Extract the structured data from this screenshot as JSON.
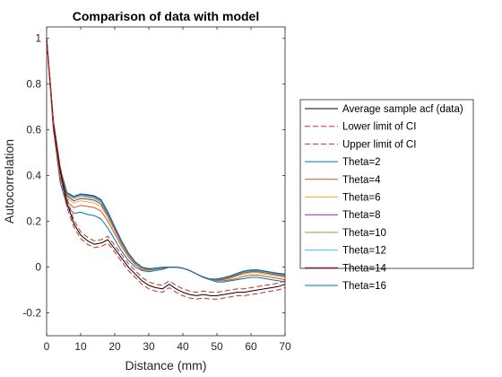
{
  "chart_data": {
    "type": "line",
    "title": "Comparison of data with model",
    "xlabel": "Distance (mm)",
    "ylabel": "Autocorrelation",
    "xlim": [
      0,
      70
    ],
    "ylim": [
      -0.3,
      1.05
    ],
    "xticks": [
      "0",
      "10",
      "20",
      "30",
      "40",
      "50",
      "60",
      "70"
    ],
    "yticks": [
      "-0.2",
      "0",
      "0.2",
      "0.4",
      "0.6",
      "0.8",
      "1"
    ],
    "grid": false,
    "legend_position": "outside-right",
    "x": [
      0,
      2,
      4,
      6,
      8,
      10,
      12,
      14,
      16,
      18,
      20,
      22,
      24,
      26,
      28,
      30,
      32,
      34,
      36,
      38,
      40,
      42,
      44,
      46,
      48,
      50,
      52,
      54,
      56,
      58,
      60,
      62,
      64,
      66,
      68,
      70
    ],
    "series": [
      {
        "name": "Average sample acf (data)",
        "color": "#000000",
        "dash": "solid",
        "values": [
          1.0,
          0.62,
          0.42,
          0.28,
          0.19,
          0.14,
          0.115,
          0.1,
          0.105,
          0.12,
          0.08,
          0.04,
          0.0,
          -0.03,
          -0.06,
          -0.08,
          -0.09,
          -0.095,
          -0.075,
          -0.095,
          -0.11,
          -0.12,
          -0.125,
          -0.12,
          -0.125,
          -0.125,
          -0.12,
          -0.115,
          -0.11,
          -0.11,
          -0.105,
          -0.1,
          -0.095,
          -0.09,
          -0.085,
          -0.075
        ]
      },
      {
        "name": "Lower limit of CI",
        "color": "#d9291c",
        "dash": "dashed",
        "values": [
          0.99,
          0.6,
          0.4,
          0.26,
          0.175,
          0.125,
          0.1,
          0.085,
          0.09,
          0.105,
          0.065,
          0.025,
          -0.015,
          -0.045,
          -0.075,
          -0.095,
          -0.105,
          -0.11,
          -0.09,
          -0.11,
          -0.125,
          -0.135,
          -0.14,
          -0.135,
          -0.14,
          -0.14,
          -0.135,
          -0.13,
          -0.125,
          -0.125,
          -0.12,
          -0.115,
          -0.11,
          -0.105,
          -0.1,
          -0.09
        ]
      },
      {
        "name": "Upper limit of CI",
        "color": "#d9291c",
        "dash": "dashed",
        "values": [
          1.0,
          0.64,
          0.44,
          0.3,
          0.205,
          0.155,
          0.13,
          0.115,
          0.12,
          0.135,
          0.095,
          0.055,
          0.015,
          -0.015,
          -0.045,
          -0.065,
          -0.075,
          -0.08,
          -0.06,
          -0.08,
          -0.095,
          -0.105,
          -0.11,
          -0.105,
          -0.11,
          -0.11,
          -0.105,
          -0.1,
          -0.095,
          -0.095,
          -0.09,
          -0.085,
          -0.08,
          -0.075,
          -0.07,
          -0.06
        ]
      },
      {
        "name": "Theta=2",
        "color": "#0072bd",
        "dash": "solid",
        "values": [
          1.0,
          0.6,
          0.37,
          0.265,
          0.235,
          0.24,
          0.23,
          0.225,
          0.21,
          0.17,
          0.12,
          0.07,
          0.03,
          0.0,
          -0.015,
          -0.02,
          -0.015,
          -0.01,
          0.0,
          0.0,
          -0.005,
          -0.015,
          -0.03,
          -0.045,
          -0.055,
          -0.065,
          -0.065,
          -0.06,
          -0.055,
          -0.05,
          -0.045,
          -0.045,
          -0.05,
          -0.055,
          -0.06,
          -0.065
        ]
      },
      {
        "name": "Theta=4",
        "color": "#d95319",
        "dash": "solid",
        "values": [
          1.0,
          0.61,
          0.39,
          0.285,
          0.26,
          0.27,
          0.265,
          0.26,
          0.245,
          0.2,
          0.145,
          0.09,
          0.045,
          0.01,
          -0.01,
          -0.015,
          -0.01,
          -0.005,
          0.0,
          0.0,
          -0.005,
          -0.015,
          -0.03,
          -0.045,
          -0.055,
          -0.06,
          -0.06,
          -0.055,
          -0.05,
          -0.04,
          -0.035,
          -0.035,
          -0.04,
          -0.045,
          -0.05,
          -0.055
        ]
      },
      {
        "name": "Theta=6",
        "color": "#edb120",
        "dash": "solid",
        "values": [
          1.0,
          0.62,
          0.405,
          0.3,
          0.28,
          0.29,
          0.285,
          0.28,
          0.265,
          0.215,
          0.16,
          0.1,
          0.05,
          0.015,
          -0.005,
          -0.015,
          -0.01,
          -0.005,
          0.0,
          0.0,
          -0.005,
          -0.015,
          -0.03,
          -0.045,
          -0.055,
          -0.06,
          -0.055,
          -0.05,
          -0.04,
          -0.03,
          -0.025,
          -0.025,
          -0.03,
          -0.035,
          -0.04,
          -0.045
        ]
      },
      {
        "name": "Theta=8",
        "color": "#7e2f8e",
        "dash": "solid",
        "values": [
          1.0,
          0.625,
          0.415,
          0.31,
          0.29,
          0.3,
          0.297,
          0.292,
          0.275,
          0.225,
          0.165,
          0.105,
          0.055,
          0.018,
          -0.003,
          -0.012,
          -0.008,
          -0.004,
          0.0,
          0.0,
          -0.005,
          -0.015,
          -0.03,
          -0.045,
          -0.055,
          -0.058,
          -0.053,
          -0.045,
          -0.035,
          -0.025,
          -0.02,
          -0.02,
          -0.025,
          -0.03,
          -0.035,
          -0.04
        ]
      },
      {
        "name": "Theta=10",
        "color": "#77ac30",
        "dash": "solid",
        "values": [
          1.0,
          0.63,
          0.42,
          0.315,
          0.3,
          0.31,
          0.305,
          0.3,
          0.283,
          0.232,
          0.17,
          0.11,
          0.058,
          0.02,
          -0.002,
          -0.01,
          -0.007,
          -0.003,
          0.0,
          0.0,
          -0.005,
          -0.015,
          -0.03,
          -0.045,
          -0.055,
          -0.056,
          -0.05,
          -0.042,
          -0.032,
          -0.022,
          -0.017,
          -0.017,
          -0.022,
          -0.027,
          -0.032,
          -0.037
        ]
      },
      {
        "name": "Theta=12",
        "color": "#4dbeee",
        "dash": "solid",
        "values": [
          1.0,
          0.635,
          0.425,
          0.32,
          0.305,
          0.315,
          0.31,
          0.305,
          0.288,
          0.236,
          0.173,
          0.112,
          0.06,
          0.021,
          -0.001,
          -0.009,
          -0.006,
          -0.002,
          0.0,
          0.0,
          -0.005,
          -0.015,
          -0.03,
          -0.045,
          -0.054,
          -0.054,
          -0.048,
          -0.04,
          -0.03,
          -0.02,
          -0.015,
          -0.015,
          -0.02,
          -0.025,
          -0.03,
          -0.034
        ]
      },
      {
        "name": "Theta=14",
        "color": "#a2142f",
        "dash": "solid",
        "values": [
          1.0,
          0.638,
          0.428,
          0.323,
          0.308,
          0.318,
          0.314,
          0.309,
          0.292,
          0.239,
          0.175,
          0.114,
          0.061,
          0.022,
          0.0,
          -0.008,
          -0.005,
          -0.002,
          0.0,
          0.0,
          -0.005,
          -0.015,
          -0.03,
          -0.044,
          -0.053,
          -0.053,
          -0.047,
          -0.039,
          -0.028,
          -0.018,
          -0.013,
          -0.013,
          -0.018,
          -0.023,
          -0.028,
          -0.032
        ]
      },
      {
        "name": "Theta=16",
        "color": "#0072bd",
        "dash": "solid",
        "values": [
          1.0,
          0.64,
          0.43,
          0.325,
          0.31,
          0.32,
          0.317,
          0.312,
          0.295,
          0.241,
          0.177,
          0.115,
          0.062,
          0.023,
          0.0,
          -0.007,
          -0.004,
          -0.001,
          0.0,
          0.0,
          -0.005,
          -0.015,
          -0.03,
          -0.043,
          -0.052,
          -0.052,
          -0.046,
          -0.038,
          -0.027,
          -0.017,
          -0.012,
          -0.012,
          -0.017,
          -0.022,
          -0.027,
          -0.03
        ]
      }
    ]
  }
}
